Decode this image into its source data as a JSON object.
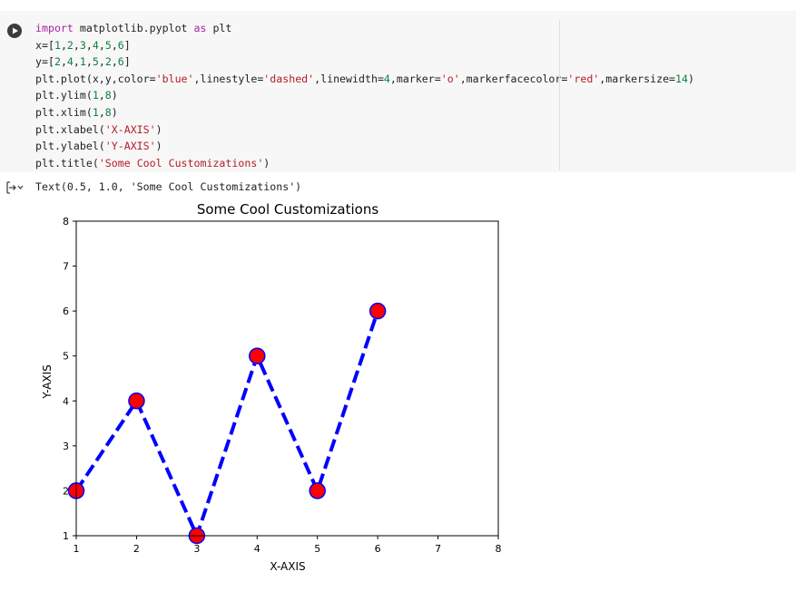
{
  "code_cell": {
    "lines": [
      [
        {
          "t": "import",
          "c": "kw"
        },
        {
          "t": " matplotlib.pyplot ",
          "c": ""
        },
        {
          "t": "as",
          "c": "kw"
        },
        {
          "t": " plt",
          "c": ""
        }
      ],
      [
        {
          "t": "x=[",
          "c": ""
        },
        {
          "t": "1",
          "c": "num"
        },
        {
          "t": ",",
          "c": ""
        },
        {
          "t": "2",
          "c": "num"
        },
        {
          "t": ",",
          "c": ""
        },
        {
          "t": "3",
          "c": "num"
        },
        {
          "t": ",",
          "c": ""
        },
        {
          "t": "4",
          "c": "num"
        },
        {
          "t": ",",
          "c": ""
        },
        {
          "t": "5",
          "c": "num"
        },
        {
          "t": ",",
          "c": ""
        },
        {
          "t": "6",
          "c": "num"
        },
        {
          "t": "]",
          "c": ""
        }
      ],
      [
        {
          "t": "y=[",
          "c": ""
        },
        {
          "t": "2",
          "c": "num"
        },
        {
          "t": ",",
          "c": ""
        },
        {
          "t": "4",
          "c": "num"
        },
        {
          "t": ",",
          "c": ""
        },
        {
          "t": "1",
          "c": "num"
        },
        {
          "t": ",",
          "c": ""
        },
        {
          "t": "5",
          "c": "num"
        },
        {
          "t": ",",
          "c": ""
        },
        {
          "t": "2",
          "c": "num"
        },
        {
          "t": ",",
          "c": ""
        },
        {
          "t": "6",
          "c": "num"
        },
        {
          "t": "]",
          "c": ""
        }
      ],
      [
        {
          "t": "plt.plot(x,y,color=",
          "c": ""
        },
        {
          "t": "'blue'",
          "c": "str"
        },
        {
          "t": ",linestyle=",
          "c": ""
        },
        {
          "t": "'dashed'",
          "c": "str"
        },
        {
          "t": ",linewidth=",
          "c": ""
        },
        {
          "t": "4",
          "c": "num"
        },
        {
          "t": ",marker=",
          "c": ""
        },
        {
          "t": "'o'",
          "c": "str"
        },
        {
          "t": ",markerfacecolor=",
          "c": ""
        },
        {
          "t": "'red'",
          "c": "str"
        },
        {
          "t": ",markersize=",
          "c": ""
        },
        {
          "t": "14",
          "c": "num"
        },
        {
          "t": ")",
          "c": ""
        }
      ],
      [
        {
          "t": "plt.ylim(",
          "c": ""
        },
        {
          "t": "1",
          "c": "num"
        },
        {
          "t": ",",
          "c": ""
        },
        {
          "t": "8",
          "c": "num"
        },
        {
          "t": ")",
          "c": ""
        }
      ],
      [
        {
          "t": "plt.xlim(",
          "c": ""
        },
        {
          "t": "1",
          "c": "num"
        },
        {
          "t": ",",
          "c": ""
        },
        {
          "t": "8",
          "c": "num"
        },
        {
          "t": ")",
          "c": ""
        }
      ],
      [
        {
          "t": "plt.xlabel(",
          "c": ""
        },
        {
          "t": "'X-AXIS'",
          "c": "str"
        },
        {
          "t": ")",
          "c": ""
        }
      ],
      [
        {
          "t": "plt.ylabel(",
          "c": ""
        },
        {
          "t": "'Y-AXIS'",
          "c": "str"
        },
        {
          "t": ")",
          "c": ""
        }
      ],
      [
        {
          "t": "plt.title(",
          "c": ""
        },
        {
          "t": "'Some Cool Customizations'",
          "c": "str"
        },
        {
          "t": ")",
          "c": ""
        }
      ]
    ]
  },
  "output": {
    "text": "Text(0.5, 1.0, 'Some Cool Customizations')"
  },
  "colors": {
    "line": "#0000ff",
    "marker_face": "#ff0000",
    "marker_edge": "#0000ff"
  },
  "chart_data": {
    "type": "line",
    "title": "Some Cool Customizations",
    "xlabel": "X-AXIS",
    "ylabel": "Y-AXIS",
    "x": [
      1,
      2,
      3,
      4,
      5,
      6
    ],
    "y": [
      2,
      4,
      1,
      5,
      2,
      6
    ],
    "xlim": [
      1,
      8
    ],
    "ylim": [
      1,
      8
    ],
    "xticks": [
      1,
      2,
      3,
      4,
      5,
      6,
      7,
      8
    ],
    "yticks": [
      1,
      2,
      3,
      4,
      5,
      6,
      7,
      8
    ],
    "linestyle": "dashed",
    "marker": "o",
    "grid": false
  }
}
